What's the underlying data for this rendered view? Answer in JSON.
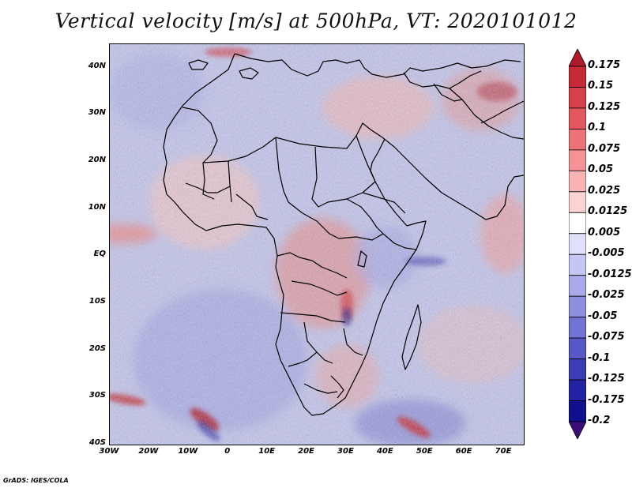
{
  "title": "Vertical velocity [m/s] at 500hPa, VT: 2020101012",
  "credit": "GrADS: IGES/COLA",
  "map": {
    "lon_range": [
      -30,
      75
    ],
    "lat_range": [
      -40,
      45
    ],
    "lat_ticks": [
      "40N",
      "30N",
      "20N",
      "10N",
      "EQ",
      "10S",
      "20S",
      "30S",
      "40S"
    ],
    "lat_values": [
      40,
      30,
      20,
      10,
      0,
      -10,
      -20,
      -30,
      -40
    ],
    "lon_ticks": [
      "30W",
      "20W",
      "10W",
      "0",
      "10E",
      "20E",
      "30E",
      "40E",
      "50E",
      "60E",
      "70E"
    ],
    "lon_values": [
      -30,
      -20,
      -10,
      0,
      10,
      20,
      30,
      40,
      50,
      60,
      70
    ]
  },
  "colorbar": {
    "labels": [
      "0.175",
      "0.15",
      "0.125",
      "0.1",
      "0.075",
      "0.05",
      "0.025",
      "0.0125",
      "0.005",
      "-0.005",
      "-0.0125",
      "-0.025",
      "-0.05",
      "-0.075",
      "-0.1",
      "-0.125",
      "-0.175",
      "-0.2"
    ],
    "colors": [
      "#b2182b",
      "#c62a35",
      "#d6404a",
      "#e2585f",
      "#ec7478",
      "#f49396",
      "#f8b4b5",
      "#fbd3d3",
      "#ffffff",
      "#e0e0fa",
      "#c6c6f2",
      "#aaaaea",
      "#8f8fe0",
      "#7373d4",
      "#5757c6",
      "#3c3cb6",
      "#2222a2",
      "#10108c",
      "#3a0d7a"
    ]
  }
}
